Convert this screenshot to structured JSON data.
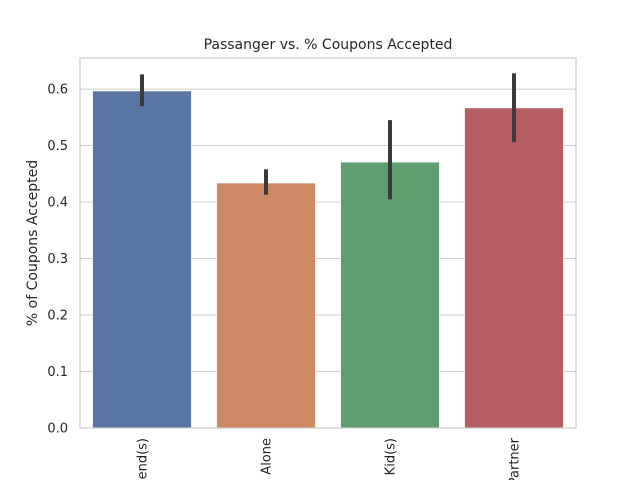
{
  "chart_data": {
    "type": "bar",
    "title": "Passanger vs. % Coupons Accepted",
    "xlabel": "",
    "ylabel": "% of Coupons Accepted",
    "categories": [
      "Friend(s)",
      "Alone",
      "Kid(s)",
      "Partner"
    ],
    "values": [
      0.597,
      0.434,
      0.471,
      0.567
    ],
    "error_low": [
      0.57,
      0.413,
      0.405,
      0.506
    ],
    "error_high": [
      0.626,
      0.458,
      0.545,
      0.628
    ],
    "ylim": [
      0,
      0.655
    ],
    "yticks": [
      "0.0",
      "0.1",
      "0.2",
      "0.3",
      "0.4",
      "0.5",
      "0.6"
    ],
    "grid": true,
    "legend": "none",
    "colors": [
      "#5975a4",
      "#cc8963",
      "#5f9e6e",
      "#b55d60"
    ],
    "error_color": "#3a3a3a"
  }
}
